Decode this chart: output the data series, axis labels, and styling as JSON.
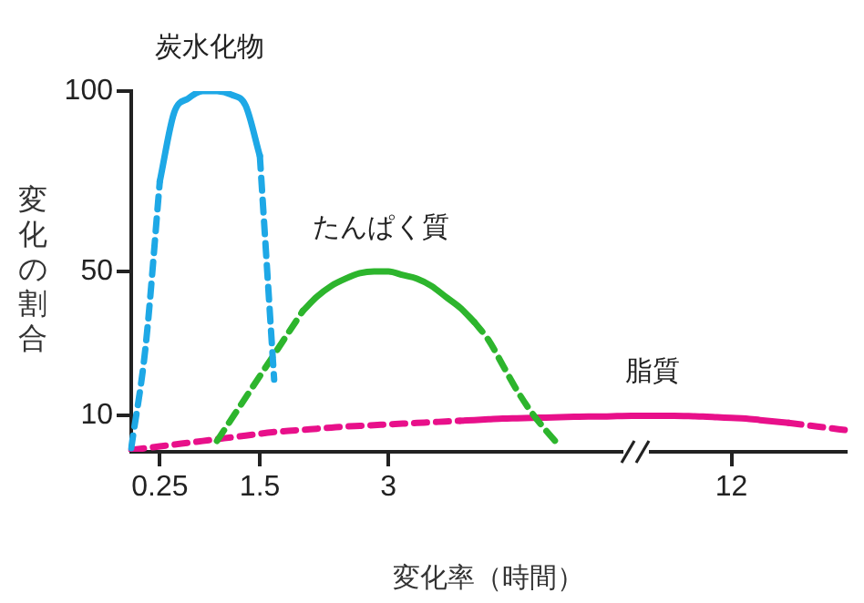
{
  "chart_data": {
    "type": "line",
    "xlabel": "変化率（時間）",
    "ylabel": "変化の割合",
    "categories": [
      null,
      null,
      "0.25",
      null,
      null,
      null,
      null,
      null,
      null,
      "1.5",
      null,
      null,
      null,
      null,
      null,
      null,
      null,
      null,
      "3",
      null,
      null,
      null,
      null,
      null,
      null,
      null,
      null,
      null,
      null,
      null,
      null,
      null,
      null,
      null,
      null,
      null,
      null,
      null,
      null,
      null,
      null,
      null,
      "12",
      null,
      null,
      null,
      null,
      null,
      null,
      null,
      null
    ],
    "ylim": [
      0,
      100
    ],
    "yticks": [
      10,
      50,
      100
    ],
    "grid": false,
    "legend": false,
    "marker": "none",
    "series": [
      {
        "name": "炭水化物",
        "color": "#1ea8e6",
        "line_style": "solid",
        "values": [
          null,
          null,
          75,
          94,
          98,
          100,
          100,
          99,
          96,
          82,
          null,
          null,
          null,
          null,
          null,
          null,
          null,
          null,
          null,
          null,
          null,
          null,
          null,
          null,
          null,
          null,
          null,
          null,
          null,
          null,
          null,
          null,
          null,
          null,
          null,
          null,
          null,
          null,
          null,
          null,
          null,
          null,
          null,
          null,
          null,
          null,
          null,
          null,
          null,
          null,
          null
        ]
      },
      {
        "color": "#1ea8e6",
        "line_style": "dashed",
        "values": [
          1,
          29,
          75,
          null,
          null,
          null,
          null,
          null,
          null,
          82,
          20,
          null,
          null,
          null,
          null,
          null,
          null,
          null,
          null,
          null,
          null,
          null,
          null,
          null,
          null,
          null,
          null,
          null,
          null,
          null,
          null,
          null,
          null,
          null,
          null,
          null,
          null,
          null,
          null,
          null,
          null,
          null,
          null,
          null,
          null,
          null,
          null,
          null,
          null,
          null,
          null
        ]
      },
      {
        "name": "たんぱく質",
        "color": "#2db52d",
        "line_style": "solid",
        "values": [
          null,
          null,
          null,
          null,
          null,
          null,
          null,
          null,
          null,
          null,
          null,
          null,
          39,
          43,
          46,
          48,
          49.5,
          50,
          50,
          49,
          48,
          46,
          43,
          40,
          36,
          null,
          null,
          null,
          null,
          null,
          null,
          null,
          null,
          null,
          null,
          null,
          null,
          null,
          null,
          null,
          null,
          null,
          null,
          null,
          null,
          null,
          null,
          null,
          null,
          null,
          null
        ]
      },
      {
        "color": "#2db52d",
        "line_style": "dashed",
        "values": [
          null,
          null,
          null,
          null,
          null,
          null,
          3,
          9,
          15,
          21,
          27,
          33,
          39,
          null,
          null,
          null,
          null,
          null,
          null,
          null,
          null,
          null,
          null,
          null,
          36,
          31,
          24,
          17,
          11,
          6,
          1.5,
          null,
          null,
          null,
          null,
          null,
          null,
          null,
          null,
          null,
          null,
          null,
          null,
          null,
          null,
          null,
          null,
          null,
          null,
          null,
          null
        ]
      },
      {
        "name": "脂質",
        "color": "#e8108a",
        "line_style": "solid",
        "values": [
          null,
          null,
          null,
          null,
          null,
          null,
          null,
          null,
          null,
          null,
          null,
          null,
          null,
          null,
          null,
          null,
          null,
          null,
          null,
          null,
          null,
          null,
          null,
          8.6,
          8.8,
          9,
          9.2,
          9.3,
          9.4,
          9.5,
          9.6,
          9.7,
          9.8,
          9.8,
          9.9,
          10,
          10,
          10,
          10,
          9.9,
          9.8,
          9.6,
          9.4,
          9.2,
          8.8,
          8.4,
          8,
          null,
          null,
          null,
          null
        ]
      },
      {
        "color": "#e8108a",
        "line_style": "dashed",
        "values": [
          0.5,
          1,
          1.5,
          2,
          2.5,
          3,
          3.5,
          4,
          4.5,
          5,
          5.5,
          5.8,
          6.1,
          6.4,
          6.7,
          7,
          7.2,
          7.4,
          7.6,
          7.8,
          8,
          8.2,
          8.4,
          8.6,
          null,
          null,
          null,
          null,
          null,
          null,
          null,
          null,
          null,
          null,
          null,
          null,
          null,
          null,
          null,
          null,
          null,
          null,
          null,
          null,
          null,
          null,
          8,
          7.5,
          7,
          6.5,
          6
        ]
      }
    ]
  }
}
